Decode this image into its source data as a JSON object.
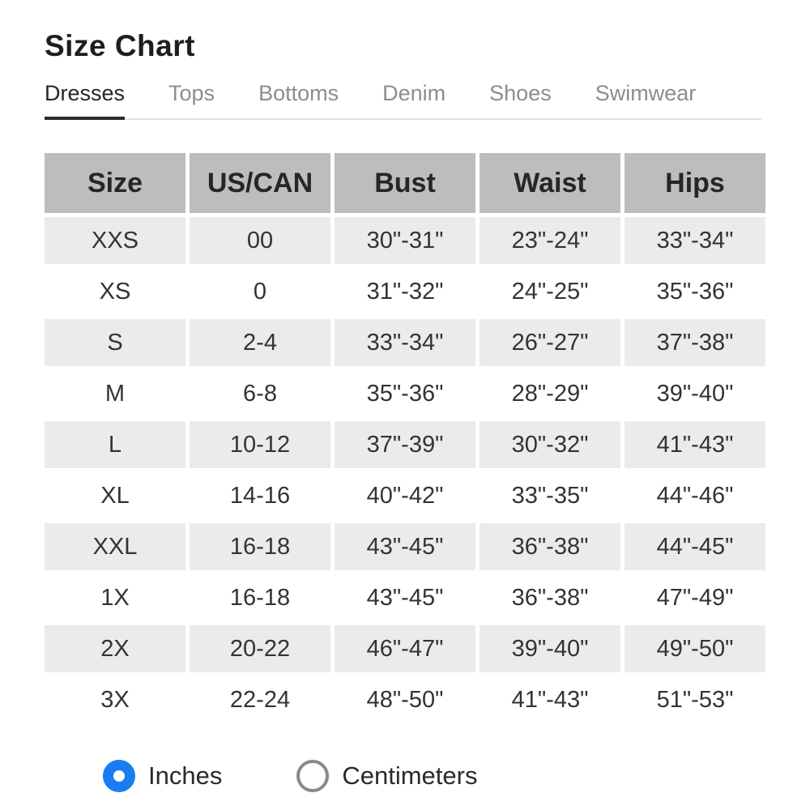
{
  "title": "Size Chart",
  "tabs": {
    "items": [
      {
        "label": "Dresses",
        "active": true
      },
      {
        "label": "Tops",
        "active": false
      },
      {
        "label": "Bottoms",
        "active": false
      },
      {
        "label": "Denim",
        "active": false
      },
      {
        "label": "Shoes",
        "active": false
      },
      {
        "label": "Swimwear",
        "active": false
      }
    ]
  },
  "table": {
    "columns": [
      "Size",
      "US/CAN",
      "Bust",
      "Waist",
      "Hips"
    ],
    "rows": [
      [
        "XXS",
        "00",
        "30\"-31\"",
        "23\"-24\"",
        "33\"-34\""
      ],
      [
        "XS",
        "0",
        "31\"-32\"",
        "24\"-25\"",
        "35\"-36\""
      ],
      [
        "S",
        "2-4",
        "33\"-34\"",
        "26\"-27\"",
        "37\"-38\""
      ],
      [
        "M",
        "6-8",
        "35\"-36\"",
        "28\"-29\"",
        "39\"-40\""
      ],
      [
        "L",
        "10-12",
        "37\"-39\"",
        "30\"-32\"",
        "41\"-43\""
      ],
      [
        "XL",
        "14-16",
        "40\"-42\"",
        "33\"-35\"",
        "44\"-46\""
      ],
      [
        "XXL",
        "16-18",
        "43\"-45\"",
        "36\"-38\"",
        "44\"-45\""
      ],
      [
        "1X",
        "16-18",
        "43\"-45\"",
        "36\"-38\"",
        "47\"-49\""
      ],
      [
        "2X",
        "20-22",
        "46\"-47\"",
        "39\"-40\"",
        "49\"-50\""
      ],
      [
        "3X",
        "22-24",
        "48\"-50\"",
        "41\"-43\"",
        "51\"-53\""
      ]
    ]
  },
  "units": {
    "options": [
      {
        "label": "Inches",
        "selected": true
      },
      {
        "label": "Centimeters",
        "selected": false
      }
    ]
  },
  "colors": {
    "accent_blue": "#1a7cf2",
    "header_gray": "#bdbdbd",
    "row_shade": "#ebebeb",
    "tab_inactive": "#8d8d8d",
    "text_dark": "#2b2b2b"
  }
}
